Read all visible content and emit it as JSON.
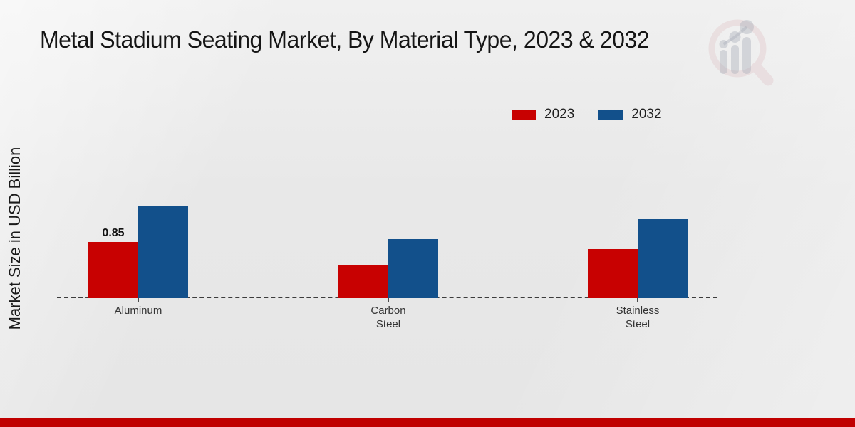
{
  "page": {
    "footer_bar_color": "#c00000",
    "background_base": "#e8e8e8",
    "watermark_icon": "magnifier-bar-chart-logo",
    "watermark_ring_color": "#cf8d94",
    "watermark_bar_color": "#a9aeb9"
  },
  "chart_data": {
    "type": "bar",
    "title": "Metal Stadium Seating Market, By Material Type, 2023 & 2032",
    "ylabel": "Market Size in USD Billion",
    "xlabel": "",
    "categories": [
      "Aluminum",
      "Carbon Steel",
      "Stainless Steel"
    ],
    "categories_display": [
      "Aluminum",
      "Carbon\nSteel",
      "Stainless\nSteel"
    ],
    "series": [
      {
        "name": "2023",
        "color": "#c80101",
        "values": [
          0.85,
          0.5,
          0.75
        ]
      },
      {
        "name": "2032",
        "color": "#12508b",
        "values": [
          1.4,
          0.9,
          1.2
        ]
      }
    ],
    "bar_labels": [
      {
        "category_index": 0,
        "series_index": 0,
        "text": "0.85"
      }
    ],
    "ylim": [
      0,
      1.5
    ],
    "grid": false,
    "legend_position": "top-right",
    "axis_style": "dashed-baseline"
  }
}
